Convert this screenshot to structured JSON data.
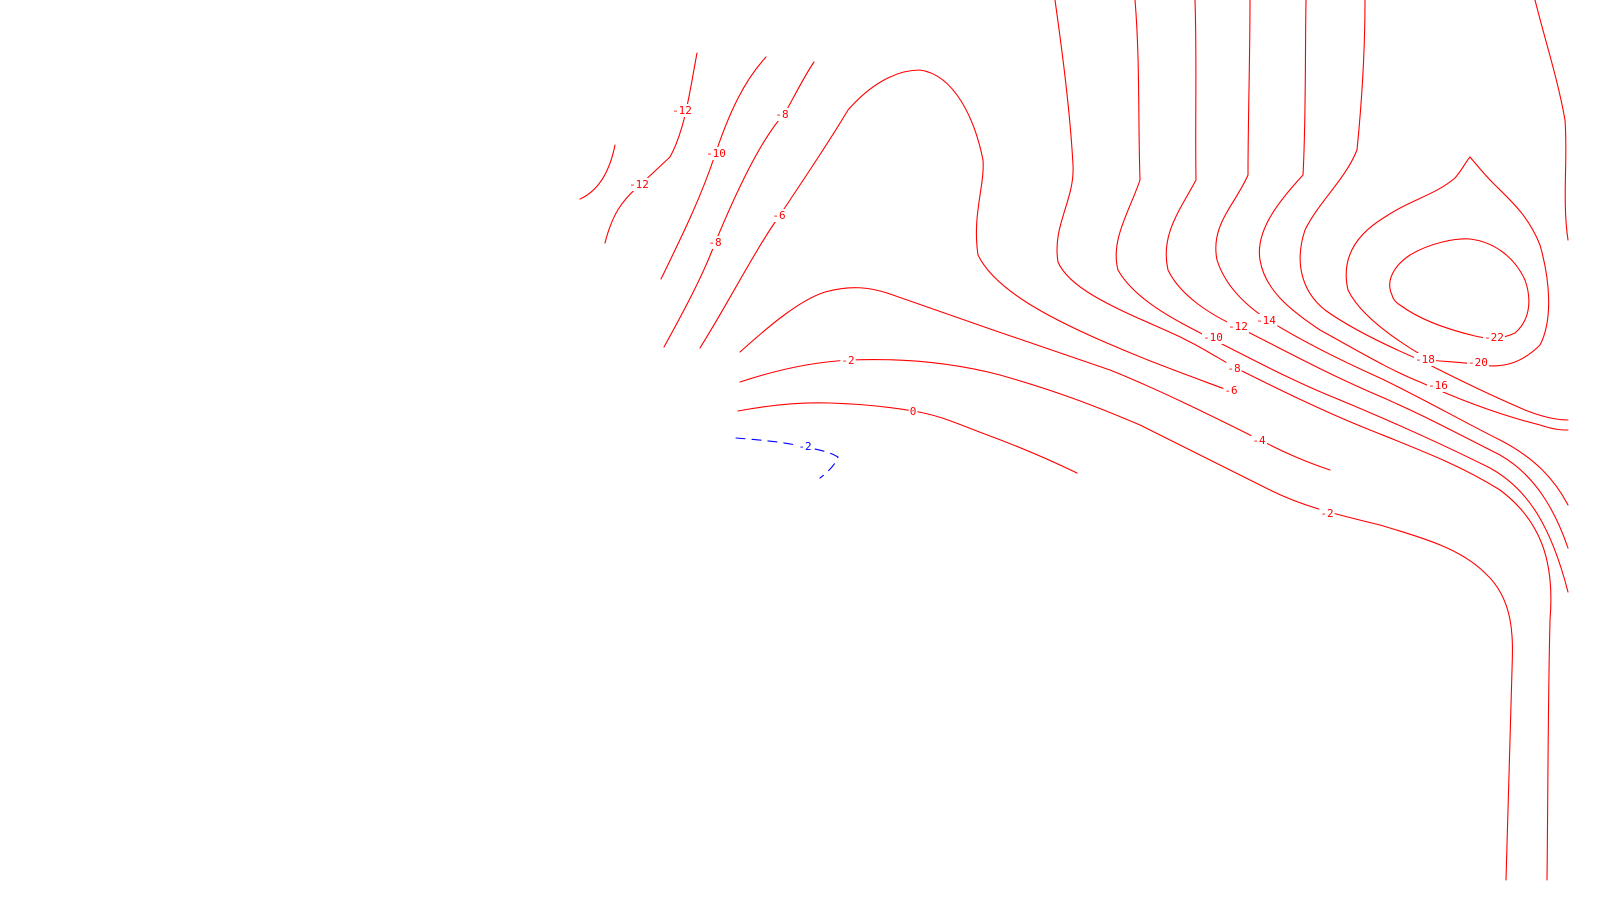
{
  "map": {
    "colors": {
      "negative_isoline": "#ff0000",
      "below_threshold_isoline": "#0000ff",
      "background": "#ffffff"
    },
    "contour_levels": [
      "-22",
      "-20",
      "-18",
      "-16",
      "-14",
      "-12",
      "-10",
      "-8",
      "-6",
      "-4",
      "-2",
      "0"
    ],
    "labels": [
      {
        "id": "nw-12a",
        "text": "-12"
      },
      {
        "id": "nw-12b",
        "text": "-12"
      },
      {
        "id": "nw-10",
        "text": "-10"
      },
      {
        "id": "nw-8a",
        "text": "-8"
      },
      {
        "id": "nw-8b",
        "text": "-8"
      },
      {
        "id": "nw-6",
        "text": "-6"
      },
      {
        "id": "c-2",
        "text": "-2"
      },
      {
        "id": "c0",
        "text": "0"
      },
      {
        "id": "blue-2",
        "text": "-2"
      },
      {
        "id": "e-14",
        "text": "-14"
      },
      {
        "id": "e-12",
        "text": "-12"
      },
      {
        "id": "e-10",
        "text": "-10"
      },
      {
        "id": "e-8",
        "text": "-8"
      },
      {
        "id": "e-6",
        "text": "-6"
      },
      {
        "id": "e-4",
        "text": "-4"
      },
      {
        "id": "e-2",
        "text": "-2"
      },
      {
        "id": "e-16",
        "text": "-16"
      },
      {
        "id": "e-18",
        "text": "-18"
      },
      {
        "id": "e-20",
        "text": "-20"
      },
      {
        "id": "e-22",
        "text": "-22"
      }
    ]
  }
}
